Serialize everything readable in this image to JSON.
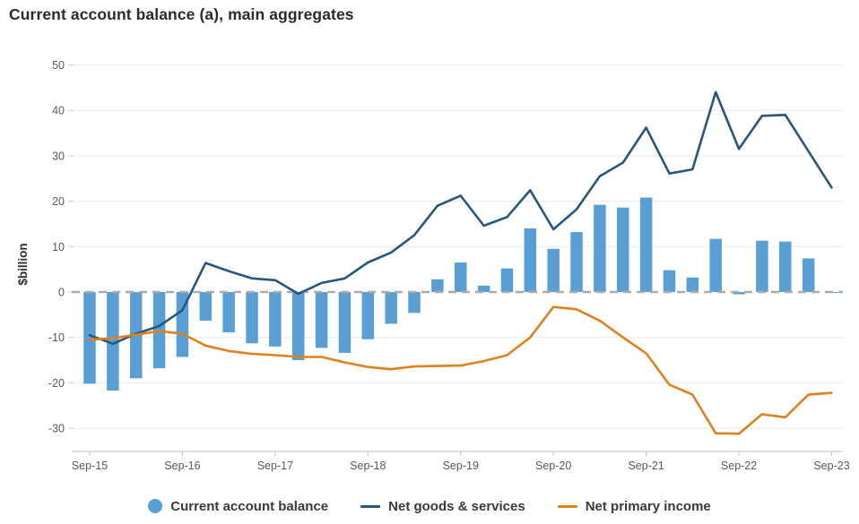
{
  "chart_data": {
    "type": "bar+line combo",
    "title": "Current account balance (a), main aggregates",
    "ylabel": "$billion",
    "xlabel": "",
    "ylim": [
      -35,
      50
    ],
    "grid": true,
    "legend_position": "bottom",
    "y_ticks": [
      50,
      40,
      30,
      20,
      10,
      0,
      -10,
      -20,
      -30
    ],
    "x_tick_labels": [
      "Sep-15",
      "Sep-16",
      "Sep-17",
      "Sep-18",
      "Sep-19",
      "Sep-20",
      "Sep-21",
      "Sep-22",
      "Sep-23"
    ],
    "x_tick_every": 4,
    "categories": [
      "Sep-15",
      "Dec-15",
      "Mar-16",
      "Jun-16",
      "Sep-16",
      "Dec-16",
      "Mar-17",
      "Jun-17",
      "Sep-17",
      "Dec-17",
      "Mar-18",
      "Jun-18",
      "Sep-18",
      "Dec-18",
      "Mar-19",
      "Jun-19",
      "Sep-19",
      "Dec-19",
      "Mar-20",
      "Jun-20",
      "Sep-20",
      "Dec-20",
      "Mar-21",
      "Jun-21",
      "Sep-21",
      "Dec-21",
      "Mar-22",
      "Jun-22",
      "Sep-22",
      "Dec-22",
      "Mar-23",
      "Jun-23",
      "Sep-23"
    ],
    "series": [
      {
        "name": "Current account balance",
        "type": "bar",
        "color": "#5a9fd4",
        "values": [
          -20.2,
          -21.7,
          -19.0,
          -16.8,
          -14.3,
          -6.3,
          -8.9,
          -11.3,
          -12.0,
          -15.0,
          -12.3,
          -13.4,
          -10.4,
          -7.0,
          -4.6,
          2.8,
          6.5,
          1.4,
          5.2,
          14.0,
          9.5,
          13.2,
          19.2,
          18.6,
          20.8,
          4.8,
          3.2,
          11.7,
          -0.5,
          11.3,
          11.1,
          7.4,
          -0.2
        ]
      },
      {
        "name": "Net goods & services",
        "type": "line",
        "color": "#28567d",
        "values": [
          -9.5,
          -11.4,
          -9.2,
          -7.5,
          -4.0,
          6.4,
          4.6,
          3.0,
          2.6,
          -0.4,
          2.0,
          3.0,
          6.5,
          8.7,
          12.5,
          19.0,
          21.2,
          14.6,
          16.5,
          22.4,
          13.8,
          18.2,
          25.5,
          28.5,
          36.2,
          26.1,
          27.0,
          44.0,
          31.5,
          38.8,
          39.0,
          31.0,
          23.0
        ]
      },
      {
        "name": "Net primary income",
        "type": "line",
        "color": "#de821f",
        "values": [
          -10.5,
          -10.2,
          -9.4,
          -8.6,
          -9.2,
          -11.8,
          -13.0,
          -13.6,
          -13.9,
          -14.3,
          -14.3,
          -15.5,
          -16.5,
          -17.0,
          -16.4,
          -16.3,
          -16.2,
          -15.2,
          -13.9,
          -10.0,
          -3.3,
          -3.8,
          -6.3,
          -10.0,
          -13.5,
          -20.4,
          -22.6,
          -31.1,
          -31.2,
          -26.9,
          -27.6,
          -22.6,
          -22.2
        ]
      }
    ],
    "style": {
      "gridline_color": "#ebebeb",
      "zero_line_color": "#ababab",
      "axis_line_color": "#cccccc",
      "tick_text_color": "#595959"
    }
  }
}
